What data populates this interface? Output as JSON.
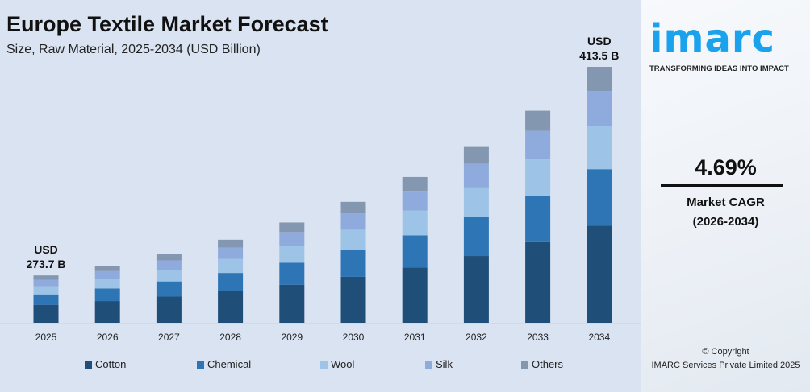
{
  "header": {
    "title": "Europe Textile Market Forecast",
    "subtitle": "Size, Raw Material, 2025-2034 (USD Billion)"
  },
  "chart_data": {
    "type": "bar",
    "stacked": true,
    "title": "Europe Textile Market Forecast",
    "subtitle": "Size, Raw Material, 2025-2034 (USD Billion)",
    "categories": [
      "2025",
      "2026",
      "2027",
      "2028",
      "2029",
      "2030",
      "2031",
      "2032",
      "2033",
      "2034"
    ],
    "series": [
      {
        "name": "Cotton",
        "color": "#1f4e79",
        "values": [
          104.0,
          108.9,
          114.0,
          119.3,
          124.9,
          130.8,
          136.9,
          143.3,
          150.1,
          157.1
        ]
      },
      {
        "name": "Chemical",
        "color": "#2e75b6",
        "values": [
          60.2,
          63.0,
          66.0,
          69.1,
          72.3,
          75.7,
          79.3,
          83.0,
          86.9,
          91.0
        ]
      },
      {
        "name": "Wool",
        "color": "#9dc3e6",
        "values": [
          46.5,
          48.7,
          51.0,
          53.4,
          55.9,
          58.5,
          61.3,
          64.1,
          67.1,
          70.3
        ]
      },
      {
        "name": "Silk",
        "color": "#8faadc",
        "values": [
          36.9,
          38.7,
          40.5,
          42.4,
          44.4,
          46.5,
          48.6,
          50.9,
          53.3,
          55.8
        ]
      },
      {
        "name": "Others",
        "color": "#8497b0",
        "values": [
          26.1,
          27.2,
          28.5,
          29.8,
          31.3,
          32.7,
          34.2,
          35.9,
          37.5,
          39.3
        ]
      }
    ],
    "annotations": [
      {
        "category": "2025",
        "line1": "USD",
        "line2": "273.7  B"
      },
      {
        "category": "2034",
        "line1": "USD",
        "line2": "413.5  B"
      }
    ],
    "legend": "bottom",
    "grid": false,
    "y_axis_visible": false
  },
  "side": {
    "logo": "imarc",
    "tagline": "TRANSFORMING IDEAS INTO IMPACT",
    "cagr": "4.69%",
    "cagr_label": "Market CAGR",
    "cagr_period": "(2026-2034)",
    "copyright": "© Copyright",
    "company": "IMARC Services Private Limited 2025"
  }
}
